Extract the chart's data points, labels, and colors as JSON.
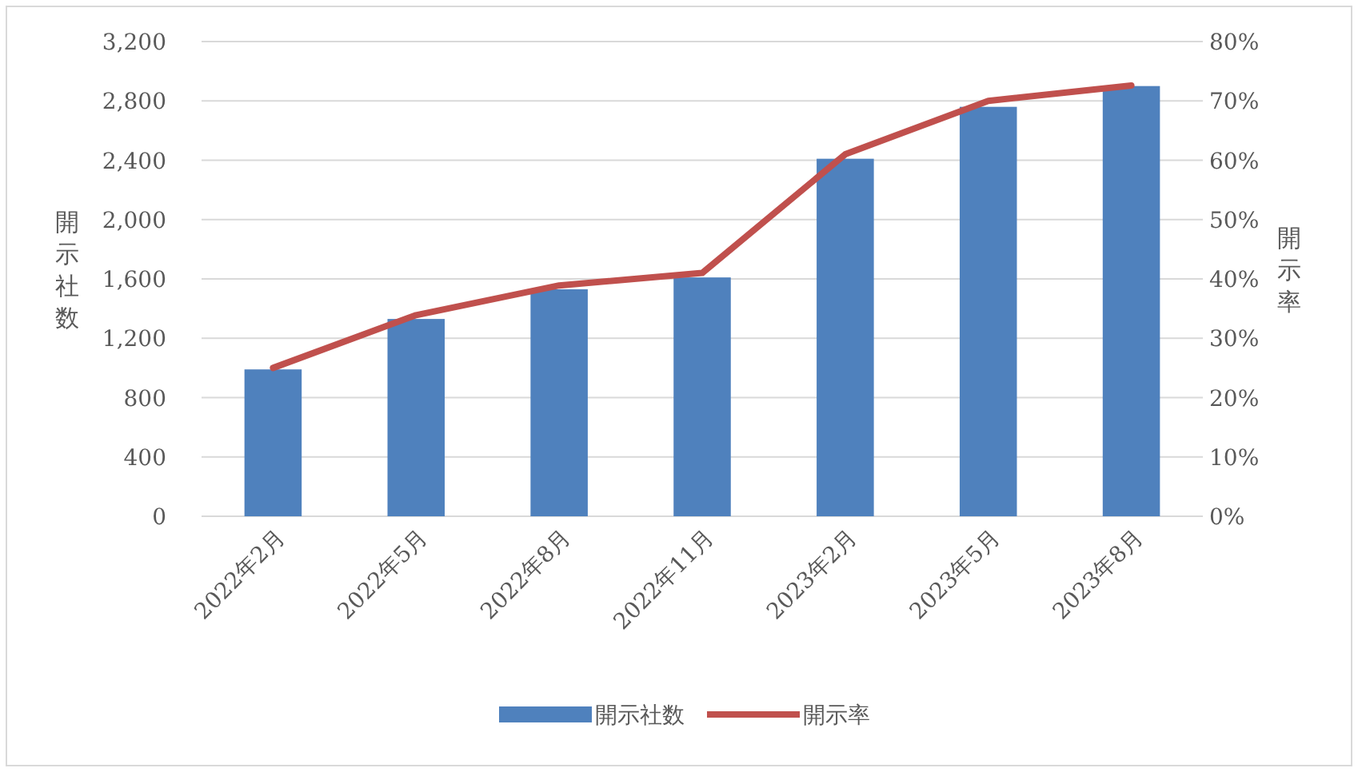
{
  "chart_data": {
    "type": "bar",
    "categories": [
      "2022年2月",
      "2022年5月",
      "2022年8月",
      "2022年11月",
      "2023年2月",
      "2023年5月",
      "2023年8月"
    ],
    "series": [
      {
        "name": "開示社数",
        "color": "#4f81bd",
        "values": [
          990,
          1330,
          1530,
          1610,
          2410,
          2760,
          2900
        ]
      },
      {
        "name": "開示率",
        "type": "line",
        "axis": "y2",
        "color": "#c0504d",
        "values": [
          25.0,
          33.9,
          38.9,
          41.0,
          61.0,
          70.0,
          72.6
        ]
      }
    ],
    "ylabel": "開示社数",
    "y2label": "開示率",
    "ylim": [
      0,
      3200
    ],
    "yticks": [
      0,
      400,
      800,
      {
        "value": 1200,
        "label": "1,200"
      },
      {
        "value": 1600,
        "label": "1,600"
      },
      {
        "value": 2000,
        "label": "2,000"
      },
      {
        "value": 2400,
        "label": "2,400"
      },
      {
        "value": 2800,
        "label": "2,800"
      },
      {
        "value": 3200,
        "label": "3,200"
      }
    ],
    "y2lim": [
      0,
      80
    ],
    "y2ticks": [
      {
        "value": 0,
        "label": "0%"
      },
      {
        "value": 10,
        "label": "10%"
      },
      {
        "value": 20,
        "label": "20%"
      },
      {
        "value": 30,
        "label": "30%"
      },
      {
        "value": 40,
        "label": "40%"
      },
      {
        "value": 50,
        "label": "50%"
      },
      {
        "value": 60,
        "label": "60%"
      },
      {
        "value": 70,
        "label": "70%"
      },
      {
        "value": 80,
        "label": "80%"
      }
    ],
    "grid": "y",
    "legend": "bottom"
  }
}
